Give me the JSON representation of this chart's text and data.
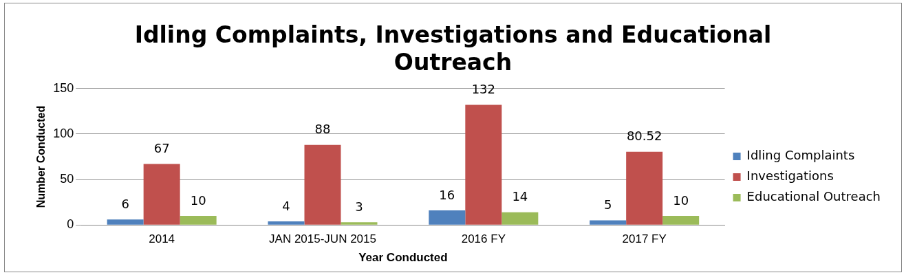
{
  "chart_data": {
    "type": "bar",
    "title": "Idling Complaints, Investigations and Educational Outreach",
    "xlabel": "Year Conducted",
    "ylabel": "Number Conducted",
    "categories": [
      "2014",
      "JAN 2015-JUN 2015",
      "2016 FY",
      "2017 FY"
    ],
    "series": [
      {
        "name": "Idling Complaints",
        "color": "#4f81bd",
        "values": [
          6,
          4,
          16,
          5
        ]
      },
      {
        "name": "Investigations",
        "color": "#c0504d",
        "values": [
          67,
          88,
          132,
          80.52
        ]
      },
      {
        "name": "Educational Outreach",
        "color": "#9bbb59",
        "values": [
          10,
          3,
          14,
          10
        ]
      }
    ],
    "ylim": [
      0,
      150
    ],
    "yticks": [
      0,
      50,
      100,
      150
    ],
    "grid": "y",
    "legend": "right",
    "data_labels": true
  }
}
